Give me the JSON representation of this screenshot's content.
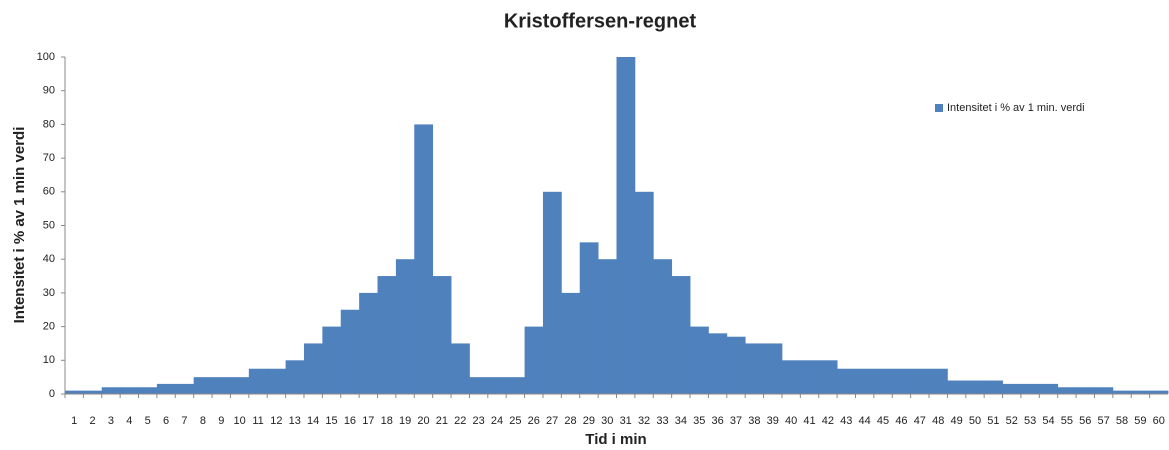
{
  "chart_data": {
    "type": "bar",
    "title": "Kristoffersen-regnet",
    "xlabel": "Tid i min",
    "ylabel": "Intensitet i % av 1 min verdi",
    "categories": [
      "1",
      "2",
      "3",
      "4",
      "5",
      "6",
      "7",
      "8",
      "9",
      "10",
      "11",
      "12",
      "13",
      "14",
      "15",
      "16",
      "17",
      "18",
      "19",
      "20",
      "21",
      "22",
      "23",
      "24",
      "25",
      "26",
      "27",
      "28",
      "29",
      "30",
      "31",
      "32",
      "33",
      "34",
      "35",
      "36",
      "37",
      "38",
      "39",
      "40",
      "41",
      "42",
      "43",
      "44",
      "45",
      "46",
      "47",
      "48",
      "49",
      "50",
      "51",
      "52",
      "53",
      "54",
      "55",
      "56",
      "57",
      "58",
      "59",
      "60"
    ],
    "series": [
      {
        "name": "Intensitet i % av 1 min. verdi",
        "color": "#4f81bd",
        "values": [
          1,
          1,
          2,
          2,
          2,
          3,
          3,
          5,
          5,
          5,
          7.5,
          7.5,
          10,
          15,
          20,
          25,
          30,
          35,
          40,
          80,
          35,
          15,
          5,
          5,
          5,
          20,
          60,
          30,
          45,
          40,
          100,
          60,
          40,
          35,
          20,
          18,
          17,
          15,
          15,
          10,
          10,
          10,
          7.5,
          7.5,
          7.5,
          7.5,
          7.5,
          7.5,
          4,
          4,
          4,
          3,
          3,
          3,
          2,
          2,
          2,
          1,
          1,
          1
        ]
      }
    ],
    "ylim": [
      0,
      100
    ],
    "yticks": [
      0,
      10,
      20,
      30,
      40,
      50,
      60,
      70,
      80,
      90,
      100
    ],
    "grid": false,
    "legend": "upper right"
  }
}
